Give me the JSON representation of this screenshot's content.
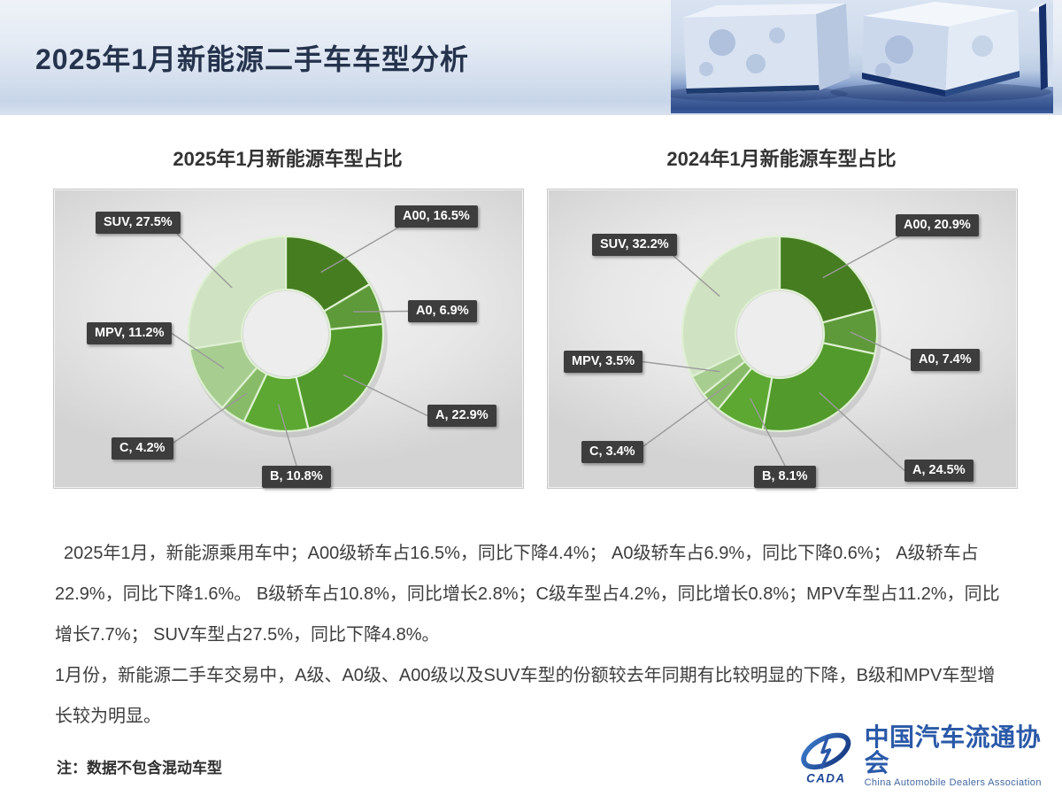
{
  "header": {
    "title": "2025年1月新能源二手车车型分析"
  },
  "chart_data": [
    {
      "type": "pie",
      "donut": true,
      "title": "2025年1月新能源车型占比",
      "categories": [
        "A00",
        "A0",
        "A",
        "B",
        "C",
        "MPV",
        "SUV"
      ],
      "values": [
        16.5,
        6.9,
        22.9,
        10.8,
        4.2,
        11.2,
        27.5
      ],
      "labels": [
        "A00, 16.5%",
        "A0, 6.9%",
        "A, 22.9%",
        "B, 10.8%",
        "C, 4.2%",
        "MPV, 11.2%",
        "SUV, 27.5%"
      ],
      "colors": [
        "#457d20",
        "#5e993a",
        "#529a2b",
        "#5ca832",
        "#88bb67",
        "#a8cd91",
        "#cfe2c1"
      ],
      "start_angle_deg": 0,
      "direction": "clockwise",
      "legend_position": "none",
      "label_box_color": "#3d3d3d",
      "segment_border_color": "#def0d2"
    },
    {
      "type": "pie",
      "donut": true,
      "title": "2024年1月新能源车型占比",
      "categories": [
        "A00",
        "A0",
        "A",
        "B",
        "C",
        "MPV",
        "SUV"
      ],
      "values": [
        20.9,
        7.4,
        24.5,
        8.1,
        3.4,
        3.5,
        32.2
      ],
      "labels": [
        "A00, 20.9%",
        "A0, 7.4%",
        "A, 24.5%",
        "B, 8.1%",
        "C, 3.4%",
        "MPV, 3.5%",
        "SUV, 32.2%"
      ],
      "colors": [
        "#457d20",
        "#5e993a",
        "#529a2b",
        "#5ca832",
        "#88bb67",
        "#a8cd91",
        "#cfe2c1"
      ],
      "start_angle_deg": 0,
      "direction": "clockwise",
      "legend_position": "none",
      "label_box_color": "#3d3d3d",
      "segment_border_color": "#def0d2"
    }
  ],
  "body": {
    "paragraph1": "2025年1月，新能源乘用车中；A00级轿车占16.5%，同比下降4.4%；  A0级轿车占6.9%，同比下降0.6%；  A级轿车占22.9%，同比下降1.6%。  B级轿车占10.8%，同比增长2.8%；C级车型占4.2%，同比增长0.8%；MPV车型占11.2%，同比增长7.7%；  SUV车型占27.5%，同比下降4.8%。",
    "paragraph2": "1月份，新能源二手车交易中，A级、A0级、A00级以及SUV车型的份额较去年同期有比较明显的下降，B级和MPV车型增长较为明显。"
  },
  "footer": {
    "note": "注：数据不包含混动车型",
    "logo_cn": "中国汽车流通协会",
    "logo_en": "China Automobile Dealers Association",
    "logo_mark": "CADA",
    "logo_blue": "#2a59a8"
  }
}
